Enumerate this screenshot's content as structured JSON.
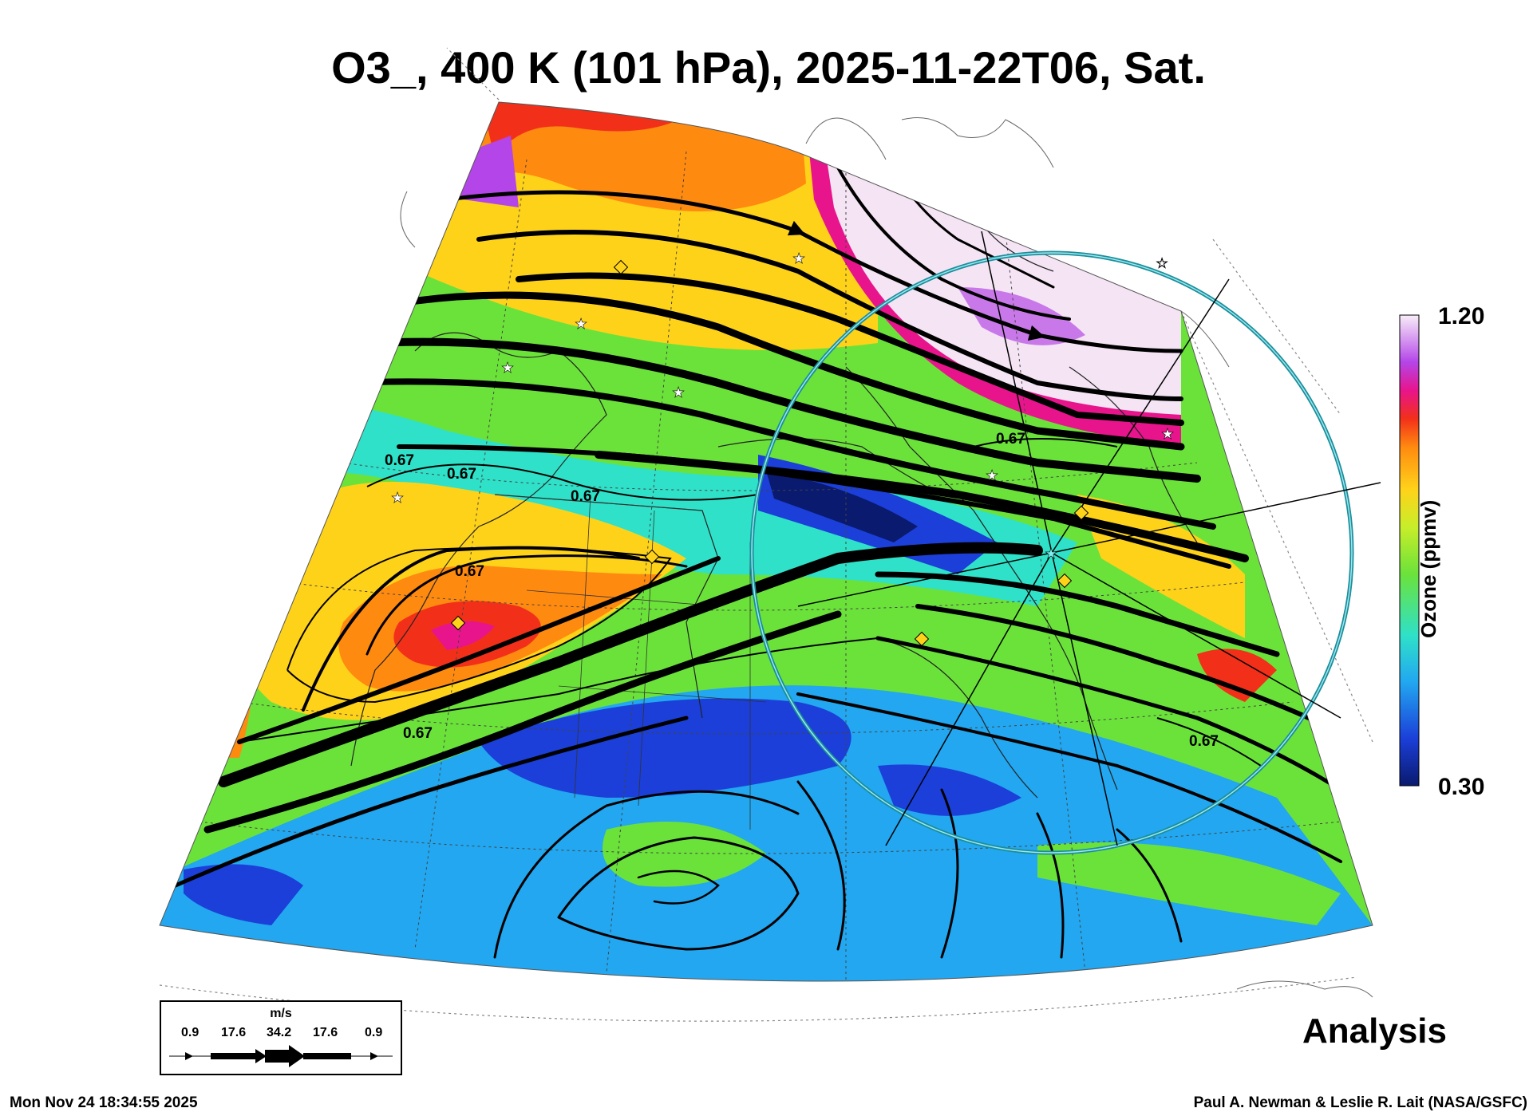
{
  "title": "O3_, 400 K (101 hPa), 2025-11-22T06, Sat.",
  "colorbar": {
    "max_label": "1.20",
    "min_label": "0.30",
    "title": "Ozone (ppmv)",
    "colors": [
      "#0a1a6e",
      "#1b3fd8",
      "#22a7f0",
      "#2fe1c8",
      "#6be23a",
      "#c8ee2a",
      "#ffd21a",
      "#ff8a10",
      "#f2301a",
      "#e8148c",
      "#b445e8",
      "#f4e4f4"
    ]
  },
  "contour_labels": [
    "0.67",
    "0.67",
    "0.67",
    "0.67",
    "0.67",
    "0.67",
    "0.67"
  ],
  "wind_legend": {
    "unit": "m/s",
    "values": [
      "0.9",
      "17.6",
      "34.2",
      "17.6",
      "0.9"
    ]
  },
  "analysis_label": "Analysis",
  "timestamp": "Mon Nov 24 18:34:55 2025",
  "credit": "Paul A. Newman & Leslie R. Lait (NASA/GSFC)",
  "colors": {
    "circle": "#20b8c8",
    "marker_yellow": "#ffd21a",
    "marker_white": "#ffffff"
  }
}
